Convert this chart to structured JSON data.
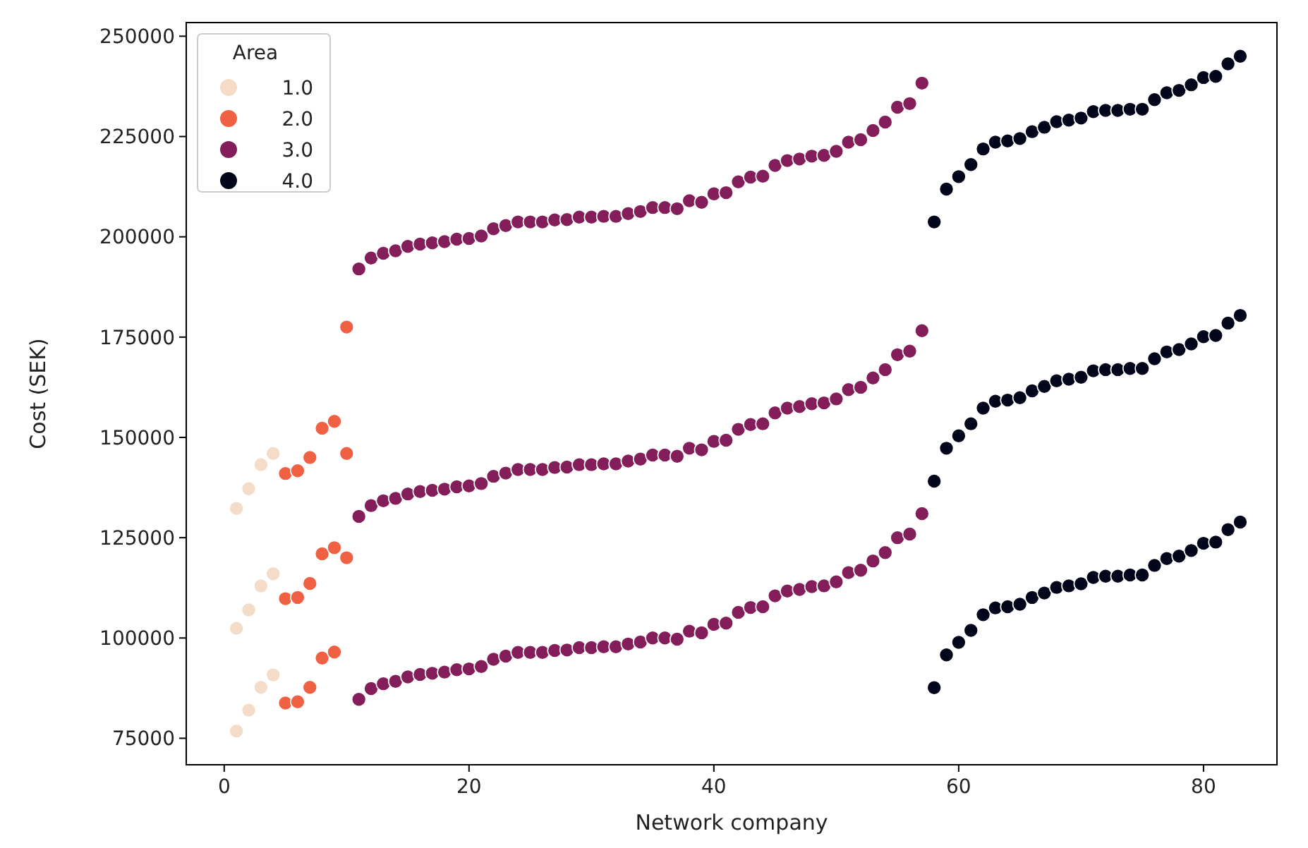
{
  "chart_data": {
    "type": "scatter",
    "xlabel": "Network company",
    "ylabel": "Cost (SEK)",
    "legend_title": "Area",
    "legend": "top left",
    "marker": "circle",
    "xlim": [
      -3.1,
      86
    ],
    "ylim": [
      68400,
      253400
    ],
    "xticks": [
      0,
      20,
      40,
      60,
      80
    ],
    "yticks": [
      75000,
      100000,
      125000,
      150000,
      175000,
      200000,
      225000,
      250000
    ],
    "series": [
      {
        "name": "1.0",
        "color": "#f5dcc9",
        "x": [
          1,
          2,
          3,
          4,
          1,
          2,
          3,
          4,
          1,
          2,
          3,
          4
        ],
        "values": [
          132300,
          137200,
          143200,
          146000,
          102400,
          107000,
          113000,
          116000,
          76800,
          82000,
          87700,
          90800
        ]
      },
      {
        "name": "2.0",
        "color": "#f06043",
        "x": [
          5,
          6,
          7,
          8,
          9,
          10,
          5,
          6,
          7,
          8,
          9,
          10,
          5,
          6,
          7,
          8,
          9,
          10
        ],
        "values": [
          141000,
          141700,
          145000,
          152300,
          154000,
          177500,
          109800,
          110100,
          113600,
          121000,
          122500,
          146000,
          83800,
          84100,
          87700,
          95000,
          96500,
          120000
        ]
      },
      {
        "name": "3.0",
        "color": "#841e5a",
        "x": [
          11,
          12,
          13,
          14,
          15,
          16,
          17,
          18,
          19,
          20,
          21,
          22,
          23,
          24,
          25,
          26,
          27,
          28,
          29,
          30,
          31,
          32,
          33,
          34,
          35,
          36,
          37,
          38,
          39,
          40,
          41,
          42,
          43,
          44,
          45,
          46,
          47,
          48,
          49,
          50,
          51,
          52,
          53,
          54,
          55,
          56,
          57,
          11,
          12,
          13,
          14,
          15,
          16,
          17,
          18,
          19,
          20,
          21,
          22,
          23,
          24,
          25,
          26,
          27,
          28,
          29,
          30,
          31,
          32,
          33,
          34,
          35,
          36,
          37,
          38,
          39,
          40,
          41,
          42,
          43,
          44,
          45,
          46,
          47,
          48,
          49,
          50,
          51,
          52,
          53,
          54,
          55,
          56,
          57,
          11,
          12,
          13,
          14,
          15,
          16,
          17,
          18,
          19,
          20,
          21,
          22,
          23,
          24,
          25,
          26,
          27,
          28,
          29,
          30,
          31,
          32,
          33,
          34,
          35,
          36,
          37,
          38,
          39,
          40,
          41,
          42,
          43,
          44,
          45,
          46,
          47,
          48,
          49,
          50,
          51,
          52,
          53,
          54,
          55,
          56,
          57
        ],
        "values": [
          192000,
          194700,
          195900,
          196500,
          197600,
          198200,
          198500,
          198800,
          199400,
          199600,
          200200,
          202000,
          202800,
          203700,
          203700,
          203700,
          204200,
          204300,
          204900,
          204900,
          205100,
          205100,
          205800,
          206300,
          207300,
          207300,
          207000,
          209000,
          208600,
          210700,
          211000,
          213700,
          214900,
          215100,
          217800,
          219000,
          219400,
          220100,
          220300,
          221300,
          223600,
          224200,
          226500,
          228600,
          232300,
          233200,
          238300,
          130300,
          133000,
          134200,
          134800,
          135900,
          136500,
          136800,
          137100,
          137700,
          137900,
          138500,
          140300,
          141100,
          142000,
          142000,
          142000,
          142500,
          142600,
          143200,
          143200,
          143400,
          143400,
          144100,
          144600,
          145600,
          145600,
          145300,
          147300,
          146900,
          149000,
          149300,
          152000,
          153200,
          153400,
          156100,
          157300,
          157700,
          158400,
          158600,
          159600,
          161900,
          162500,
          164800,
          166900,
          170600,
          171500,
          176600,
          84700,
          87400,
          88600,
          89200,
          90300,
          90900,
          91200,
          91500,
          92100,
          92300,
          92900,
          94700,
          95500,
          96400,
          96400,
          96400,
          96900,
          97000,
          97600,
          97600,
          97800,
          97800,
          98500,
          99000,
          100000,
          100000,
          99700,
          101700,
          101300,
          103400,
          103700,
          106400,
          107600,
          107800,
          110500,
          111700,
          112100,
          112800,
          113000,
          114000,
          116300,
          116900,
          119200,
          121300,
          125000,
          125900,
          131000
        ]
      },
      {
        "name": "4.0",
        "color": "#03051a",
        "x": [
          58,
          59,
          60,
          61,
          62,
          63,
          64,
          65,
          66,
          67,
          68,
          69,
          70,
          71,
          72,
          73,
          74,
          75,
          76,
          77,
          78,
          79,
          80,
          81,
          82,
          83,
          58,
          59,
          60,
          61,
          62,
          63,
          64,
          65,
          66,
          67,
          68,
          69,
          70,
          71,
          72,
          73,
          74,
          75,
          76,
          77,
          78,
          79,
          80,
          81,
          82,
          83,
          58,
          59,
          60,
          61,
          62,
          63,
          64,
          65,
          66,
          67,
          68,
          69,
          70,
          71,
          72,
          73,
          74,
          75,
          76,
          77,
          78,
          79,
          80,
          81,
          82,
          83
        ],
        "values": [
          203700,
          211900,
          215000,
          218000,
          221900,
          223600,
          223900,
          224500,
          226200,
          227300,
          228700,
          229100,
          229600,
          231200,
          231500,
          231500,
          231800,
          231800,
          234200,
          235900,
          236500,
          237900,
          239700,
          240000,
          243100,
          245000,
          139100,
          147300,
          150400,
          153400,
          157300,
          159000,
          159300,
          159900,
          161600,
          162700,
          164100,
          164500,
          165000,
          166600,
          166900,
          166900,
          167200,
          167200,
          169600,
          171300,
          171900,
          173300,
          175100,
          175400,
          178500,
          180400,
          87600,
          95800,
          98900,
          101900,
          105800,
          107500,
          107800,
          108400,
          110100,
          111200,
          112600,
          113000,
          113500,
          115100,
          115400,
          115400,
          115700,
          115700,
          118100,
          119800,
          120400,
          121800,
          123600,
          123900,
          127000,
          128900
        ]
      }
    ]
  }
}
